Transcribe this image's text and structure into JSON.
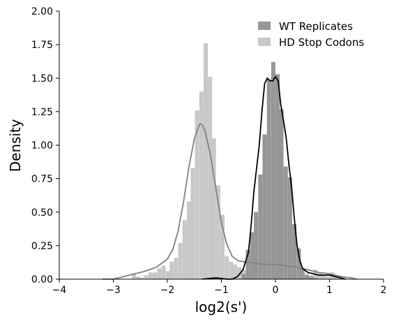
{
  "chart_data": {
    "type": "histogram",
    "title": "",
    "xlabel": "log2(s')",
    "ylabel": "Density",
    "xlim": [
      -4,
      2
    ],
    "ylim": [
      0,
      2
    ],
    "xticks": [
      -4,
      -3,
      -2,
      -1,
      0,
      1,
      2
    ],
    "xtick_labels": [
      "−4",
      "−3",
      "−2",
      "−1",
      "0",
      "1",
      "2"
    ],
    "yticks": [
      0,
      0.25,
      0.5,
      0.75,
      1.0,
      1.25,
      1.5,
      1.75,
      2.0
    ],
    "ytick_labels": [
      "0.00",
      "0.25",
      "0.50",
      "0.75",
      "1.00",
      "1.25",
      "1.50",
      "1.75",
      "2.00"
    ],
    "grid": false,
    "legend_position": "top-right",
    "bin_width": 0.078,
    "series": [
      {
        "name": "HD Stop Codons",
        "color": "#c8c8c8",
        "kde_color": "#808080",
        "bins": [
          [
            -2.62,
            0.04
          ],
          [
            -2.54,
            0.02
          ],
          [
            -2.46,
            0.01
          ],
          [
            -2.39,
            0.03
          ],
          [
            -2.31,
            0.05
          ],
          [
            -2.23,
            0.05
          ],
          [
            -2.15,
            0.08
          ],
          [
            -2.07,
            0.1
          ],
          [
            -1.99,
            0.06
          ],
          [
            -1.92,
            0.13
          ],
          [
            -1.84,
            0.16
          ],
          [
            -1.76,
            0.27
          ],
          [
            -1.68,
            0.44
          ],
          [
            -1.6,
            0.58
          ],
          [
            -1.53,
            0.83
          ],
          [
            -1.45,
            1.26
          ],
          [
            -1.37,
            1.4
          ],
          [
            -1.29,
            1.76
          ],
          [
            -1.21,
            1.51
          ],
          [
            -1.14,
            1.05
          ],
          [
            -1.06,
            0.7
          ],
          [
            -0.98,
            0.48
          ],
          [
            -0.9,
            0.17
          ],
          [
            -0.82,
            0.13
          ],
          [
            -0.75,
            0.11
          ],
          [
            -0.67,
            0.09
          ],
          [
            -0.59,
            0.07
          ],
          [
            -0.51,
            0.06
          ],
          [
            -0.43,
            0.06
          ],
          [
            -0.36,
            0.06
          ],
          [
            -0.28,
            0.07
          ],
          [
            -0.2,
            0.06
          ],
          [
            -0.12,
            0.05
          ],
          [
            -0.04,
            0.06
          ],
          [
            0.04,
            0.12
          ],
          [
            0.11,
            0.05
          ],
          [
            0.19,
            0.08
          ],
          [
            0.27,
            0.07
          ],
          [
            0.35,
            0.04
          ],
          [
            0.43,
            0.06
          ],
          [
            0.5,
            0.05
          ],
          [
            0.58,
            0.04
          ],
          [
            0.66,
            0.03
          ],
          [
            0.74,
            0.07
          ],
          [
            0.82,
            0.05
          ],
          [
            0.89,
            0.03
          ],
          [
            0.97,
            0.02
          ],
          [
            1.05,
            0.05
          ],
          [
            1.13,
            0.03
          ]
        ],
        "kde": [
          [
            -3.2,
            0.0
          ],
          [
            -3.0,
            0.0
          ],
          [
            -2.8,
            0.02
          ],
          [
            -2.6,
            0.04
          ],
          [
            -2.4,
            0.06
          ],
          [
            -2.2,
            0.09
          ],
          [
            -2.0,
            0.15
          ],
          [
            -1.9,
            0.22
          ],
          [
            -1.8,
            0.36
          ],
          [
            -1.7,
            0.58
          ],
          [
            -1.6,
            0.84
          ],
          [
            -1.5,
            1.05
          ],
          [
            -1.4,
            1.16
          ],
          [
            -1.35,
            1.15
          ],
          [
            -1.3,
            1.1
          ],
          [
            -1.2,
            0.92
          ],
          [
            -1.1,
            0.67
          ],
          [
            -1.0,
            0.42
          ],
          [
            -0.9,
            0.26
          ],
          [
            -0.8,
            0.17
          ],
          [
            -0.7,
            0.14
          ],
          [
            -0.6,
            0.13
          ],
          [
            -0.4,
            0.12
          ],
          [
            -0.2,
            0.11
          ],
          [
            0.0,
            0.11
          ],
          [
            0.2,
            0.1
          ],
          [
            0.4,
            0.09
          ],
          [
            0.6,
            0.07
          ],
          [
            0.8,
            0.05
          ],
          [
            1.0,
            0.04
          ],
          [
            1.2,
            0.02
          ],
          [
            1.4,
            0.01
          ],
          [
            1.5,
            0.0
          ]
        ]
      },
      {
        "name": "WT Replicates",
        "color": "#969696",
        "kde_color": "#000000",
        "bins": [
          [
            -0.59,
            0.04
          ],
          [
            -0.51,
            0.22
          ],
          [
            -0.43,
            0.35
          ],
          [
            -0.36,
            0.5
          ],
          [
            -0.28,
            0.78
          ],
          [
            -0.2,
            1.08
          ],
          [
            -0.12,
            1.49
          ],
          [
            -0.04,
            1.62
          ],
          [
            0.04,
            1.53
          ],
          [
            0.11,
            1.27
          ],
          [
            0.19,
            0.84
          ],
          [
            0.27,
            0.76
          ],
          [
            0.35,
            0.41
          ],
          [
            0.43,
            0.23
          ],
          [
            0.5,
            0.08
          ],
          [
            0.58,
            0.03
          ],
          [
            0.66,
            0.02
          ],
          [
            0.74,
            0.01
          ]
        ],
        "kde": [
          [
            -1.35,
            0.0
          ],
          [
            -1.1,
            0.01
          ],
          [
            -0.9,
            0.0
          ],
          [
            -0.8,
            0.0
          ],
          [
            -0.7,
            0.02
          ],
          [
            -0.6,
            0.07
          ],
          [
            -0.5,
            0.2
          ],
          [
            -0.45,
            0.4
          ],
          [
            -0.4,
            0.65
          ],
          [
            -0.3,
            1.0
          ],
          [
            -0.25,
            1.25
          ],
          [
            -0.2,
            1.46
          ],
          [
            -0.15,
            1.5
          ],
          [
            -0.1,
            1.48
          ],
          [
            -0.05,
            1.48
          ],
          [
            0.0,
            1.51
          ],
          [
            0.05,
            1.48
          ],
          [
            0.1,
            1.3
          ],
          [
            0.15,
            1.18
          ],
          [
            0.2,
            1.05
          ],
          [
            0.25,
            0.85
          ],
          [
            0.3,
            0.68
          ],
          [
            0.35,
            0.45
          ],
          [
            0.4,
            0.25
          ],
          [
            0.45,
            0.14
          ],
          [
            0.5,
            0.08
          ],
          [
            0.6,
            0.05
          ],
          [
            0.7,
            0.04
          ],
          [
            0.8,
            0.03
          ],
          [
            0.9,
            0.03
          ],
          [
            1.0,
            0.03
          ],
          [
            1.1,
            0.02
          ],
          [
            1.2,
            0.01
          ],
          [
            1.3,
            0.0
          ]
        ]
      }
    ]
  }
}
